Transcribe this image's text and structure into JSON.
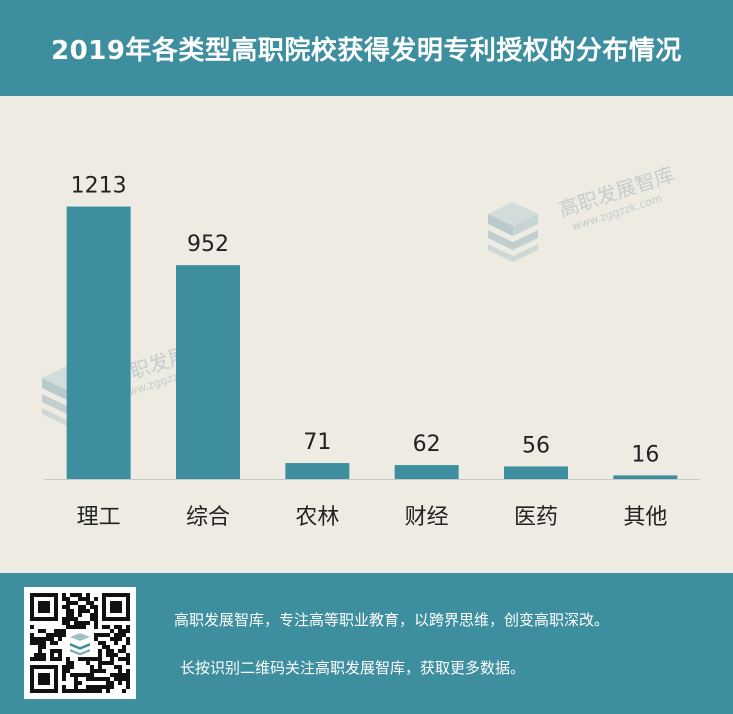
{
  "header": {
    "title": "2019年各类型高职院校获得发明专利授权的分布情况"
  },
  "watermark": {
    "brand": "高职发展智库",
    "url": "www.zggzzk.com"
  },
  "chart_data": {
    "type": "bar",
    "title": "2019年各类型高职院校获得发明专利授权的分布情况",
    "categories": [
      "理工",
      "综合",
      "农林",
      "财经",
      "医药",
      "其他"
    ],
    "values": [
      1213,
      952,
      71,
      62,
      56,
      16
    ],
    "ylim": [
      0,
      1300
    ],
    "grid": false,
    "bar_color": "#3d8f9f"
  },
  "footer": {
    "line1": "高职发展智库，专注高等职业教育，以跨界思维，创变高职深改。",
    "line2": "长按识别二维码关注高职发展智库，获取更多数据。"
  },
  "colors": {
    "header_bg": "#3d8f9f",
    "plot_bg": "#eeebe2",
    "axis": "#c8c8c8",
    "text": "#222222"
  }
}
